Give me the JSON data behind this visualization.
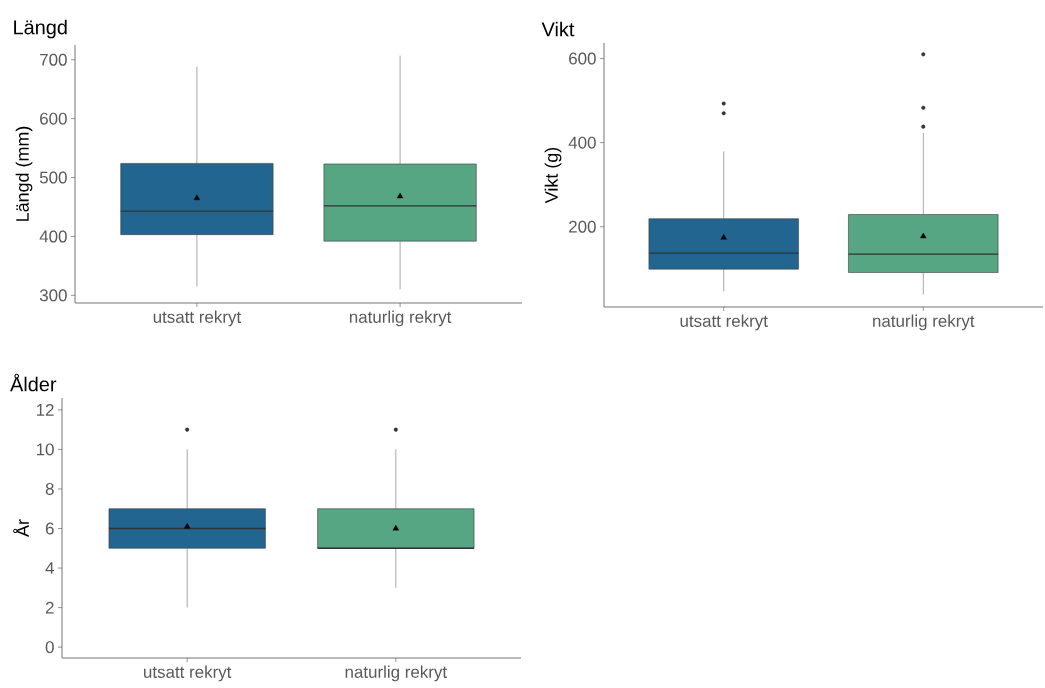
{
  "chart_data": [
    {
      "type": "box",
      "title": "Längd",
      "ylabel": "Längd (mm)",
      "categories": [
        "utsatt rekryt",
        "naturlig rekryt"
      ],
      "colors": [
        "#236591",
        "#56a583"
      ],
      "boxes": [
        {
          "low": 315,
          "q1": 403,
          "median": 443,
          "q3": 524,
          "high": 688,
          "mean": 465
        },
        {
          "low": 310,
          "q1": 392,
          "median": 452,
          "q3": 523,
          "high": 707,
          "mean": 468
        }
      ],
      "ylim": [
        287,
        725
      ],
      "yticks": [
        300,
        400,
        500,
        600,
        700
      ]
    },
    {
      "type": "box",
      "title": "Vikt",
      "ylabel": "Vikt (g)",
      "categories": [
        "utsatt rekryt",
        "naturlig rekryt"
      ],
      "colors": [
        "#236591",
        "#56a583"
      ],
      "boxes": [
        {
          "low": 46,
          "q1": 99,
          "median": 137,
          "q3": 219,
          "high": 379,
          "mean": 174,
          "outliers": [
            493,
            470
          ]
        },
        {
          "low": 39,
          "q1": 91,
          "median": 135,
          "q3": 229,
          "high": 423,
          "mean": 177,
          "outliers": [
            610,
            483,
            438
          ]
        }
      ],
      "ylim": [
        9,
        637
      ],
      "yticks": [
        200,
        400,
        600
      ]
    },
    {
      "type": "box",
      "title": "Ålder",
      "ylabel": "År",
      "categories": [
        "utsatt rekryt",
        "naturlig rekryt"
      ],
      "colors": [
        "#236591",
        "#56a583"
      ],
      "boxes": [
        {
          "low": 2,
          "q1": 5,
          "median": 6,
          "q3": 7,
          "high": 10,
          "mean": 6.1,
          "outliers": [
            11
          ]
        },
        {
          "low": 3,
          "q1": 5,
          "median": 5,
          "q3": 7,
          "high": 10,
          "mean": 6.0,
          "outliers": [
            11
          ]
        }
      ],
      "ylim": [
        -0.55,
        12.6
      ],
      "yticks": [
        0,
        2,
        4,
        6,
        8,
        10,
        12
      ]
    }
  ]
}
